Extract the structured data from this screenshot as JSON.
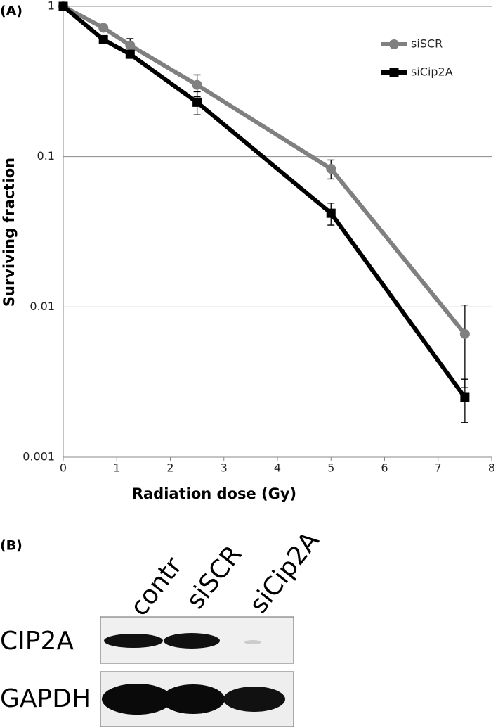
{
  "panel_labels": [
    "(A)",
    "(B)"
  ],
  "chart_data": {
    "type": "line",
    "x_label": "Radiation dose (Gy)",
    "y_label": "Surviving fraction",
    "x": [
      0,
      0.75,
      1.25,
      2.5,
      5,
      7.5
    ],
    "series": [
      {
        "name": "siSCR",
        "color": "#808080",
        "marker": "circle",
        "values": [
          1,
          0.72,
          0.55,
          0.3,
          0.083,
          0.0066
        ],
        "errors": [
          null,
          null,
          0.06,
          0.05,
          0.012,
          0.0037
        ]
      },
      {
        "name": "siCip2A",
        "color": "#000000",
        "marker": "square",
        "values": [
          1,
          0.6,
          0.48,
          0.23,
          0.042,
          0.0025
        ],
        "errors": [
          null,
          null,
          null,
          0.04,
          0.007,
          0.0008
        ]
      }
    ],
    "xlim": [
      0,
      8
    ],
    "xticks": [
      0,
      1,
      2,
      3,
      4,
      5,
      6,
      7,
      8
    ],
    "ylim": [
      0.001,
      1
    ],
    "yticks": [
      0.001,
      0.01,
      0.1,
      1
    ],
    "log_y": true,
    "grid": true,
    "legend": "top-right"
  },
  "blot": {
    "lanes": [
      "contr",
      "siSCR",
      "siCip2A"
    ],
    "rows": [
      "CIP2A",
      "GAPDH"
    ]
  }
}
